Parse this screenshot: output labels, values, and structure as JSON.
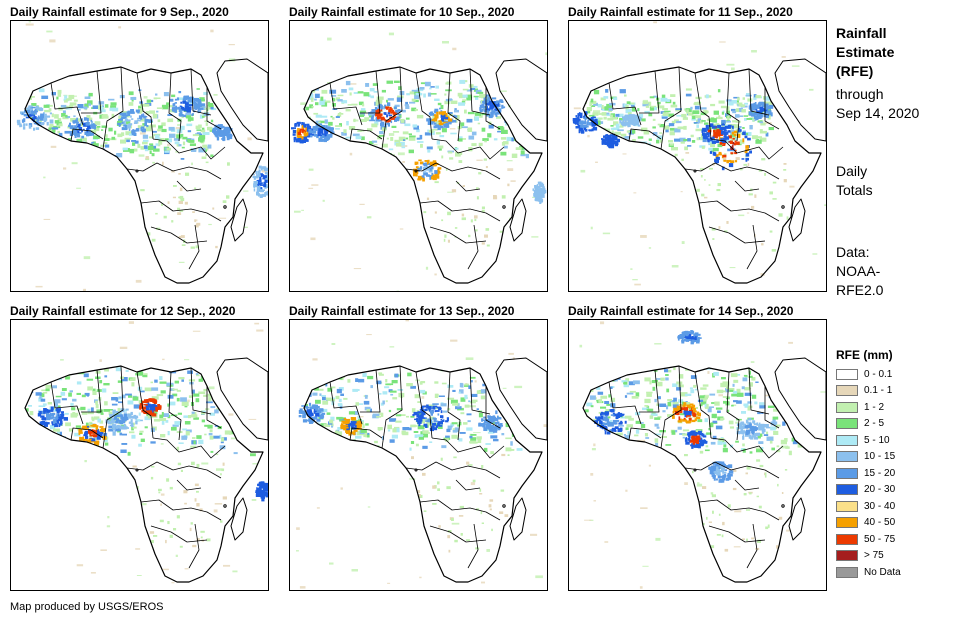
{
  "panels": [
    {
      "title": "Daily Rainfall estimate for 9 Sep., 2020"
    },
    {
      "title": "Daily Rainfall estimate for 10 Sep., 2020"
    },
    {
      "title": "Daily Rainfall estimate for 11 Sep., 2020"
    },
    {
      "title": "Daily Rainfall estimate for 12 Sep., 2020"
    },
    {
      "title": "Daily Rainfall estimate for 13 Sep., 2020"
    },
    {
      "title": "Daily Rainfall estimate for 14 Sep., 2020"
    }
  ],
  "sidebar": {
    "heading_line1": "Rainfall",
    "heading_line2": "Estimate",
    "heading_line3": "(RFE)",
    "through_line1": "through",
    "through_line2": "Sep 14, 2020",
    "totals_line1": "Daily",
    "totals_line2": "Totals",
    "data_line1": "Data:",
    "data_line2": "NOAA-",
    "data_line3": "RFE2.0"
  },
  "legend": {
    "title": "RFE (mm)",
    "items": [
      {
        "label": "0 - 0.1",
        "color": "#ffffff"
      },
      {
        "label": "0.1 - 1",
        "color": "#e6d7b9"
      },
      {
        "label": "1 - 2",
        "color": "#c2f0b0"
      },
      {
        "label": "2 - 5",
        "color": "#7ae37a"
      },
      {
        "label": "5 - 10",
        "color": "#aeeaf5"
      },
      {
        "label": "10 - 15",
        "color": "#8cc0ee"
      },
      {
        "label": "15 - 20",
        "color": "#5b9be6"
      },
      {
        "label": "20 - 30",
        "color": "#1e5de0"
      },
      {
        "label": "30 - 40",
        "color": "#fbe089"
      },
      {
        "label": "40 - 50",
        "color": "#f5a000"
      },
      {
        "label": "50 - 75",
        "color": "#ec3a00"
      },
      {
        "label": "> 75",
        "color": "#a51e1e"
      },
      {
        "label": "No Data",
        "color": "#999999"
      }
    ]
  },
  "credit": "Map produced by USGS/EROS"
}
